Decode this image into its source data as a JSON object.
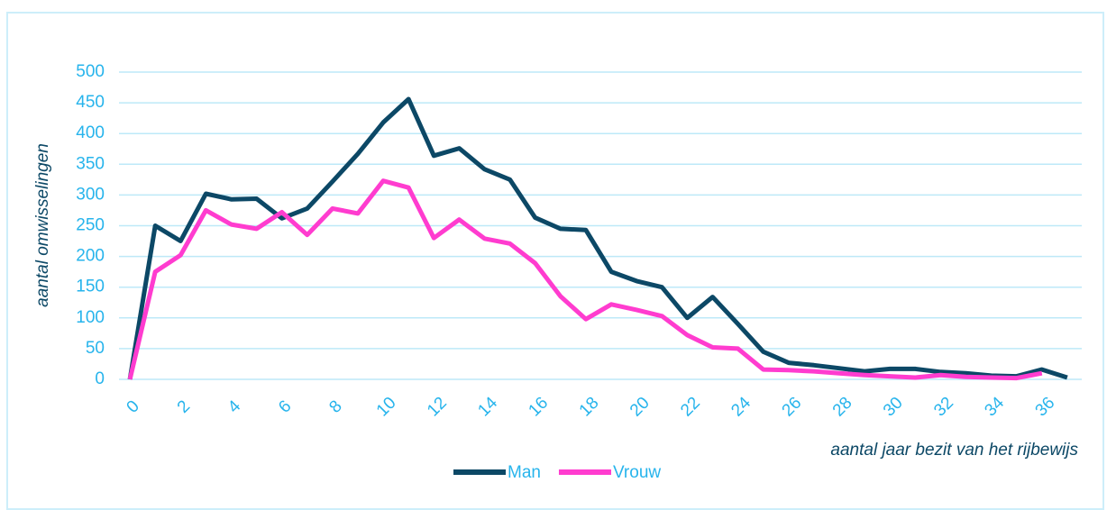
{
  "chart_data": {
    "type": "line",
    "x_label": "aantal jaar bezit van het rijbewijs",
    "y_label": "aantal omwisselingen",
    "categories": [
      "0",
      null,
      "2",
      null,
      "4",
      null,
      "6",
      null,
      "8",
      null,
      "10",
      null,
      "12",
      null,
      "14",
      null,
      "16",
      null,
      "18",
      null,
      "20",
      null,
      "22",
      null,
      "24",
      null,
      "26",
      null,
      "28",
      null,
      "30",
      null,
      "32",
      null,
      "34",
      null,
      "36",
      null
    ],
    "series": [
      {
        "name": "Man",
        "color": "#0c4866",
        "values": [
          0,
          250,
          225,
          302,
          293,
          294,
          262,
          278,
          322,
          367,
          418,
          456,
          364,
          376,
          342,
          325,
          263,
          245,
          243,
          175,
          160,
          150,
          100,
          134,
          90,
          45,
          27,
          23,
          18,
          13,
          17,
          17,
          12,
          10,
          6,
          5,
          16,
          3
        ]
      },
      {
        "name": "Vrouw",
        "color": "#ff3ccf",
        "values": [
          0,
          175,
          202,
          275,
          252,
          245,
          272,
          235,
          278,
          270,
          323,
          312,
          230,
          260,
          229,
          221,
          189,
          135,
          98,
          122,
          113,
          103,
          72,
          52,
          50,
          16,
          15,
          13,
          10,
          7,
          5,
          3,
          7,
          4,
          3,
          2,
          10,
          null
        ]
      }
    ],
    "ylim": [
      0,
      500
    ],
    "yticks": [
      0,
      50,
      100,
      150,
      200,
      250,
      300,
      350,
      400,
      450,
      500
    ],
    "grid": true,
    "legend": "bottom"
  }
}
